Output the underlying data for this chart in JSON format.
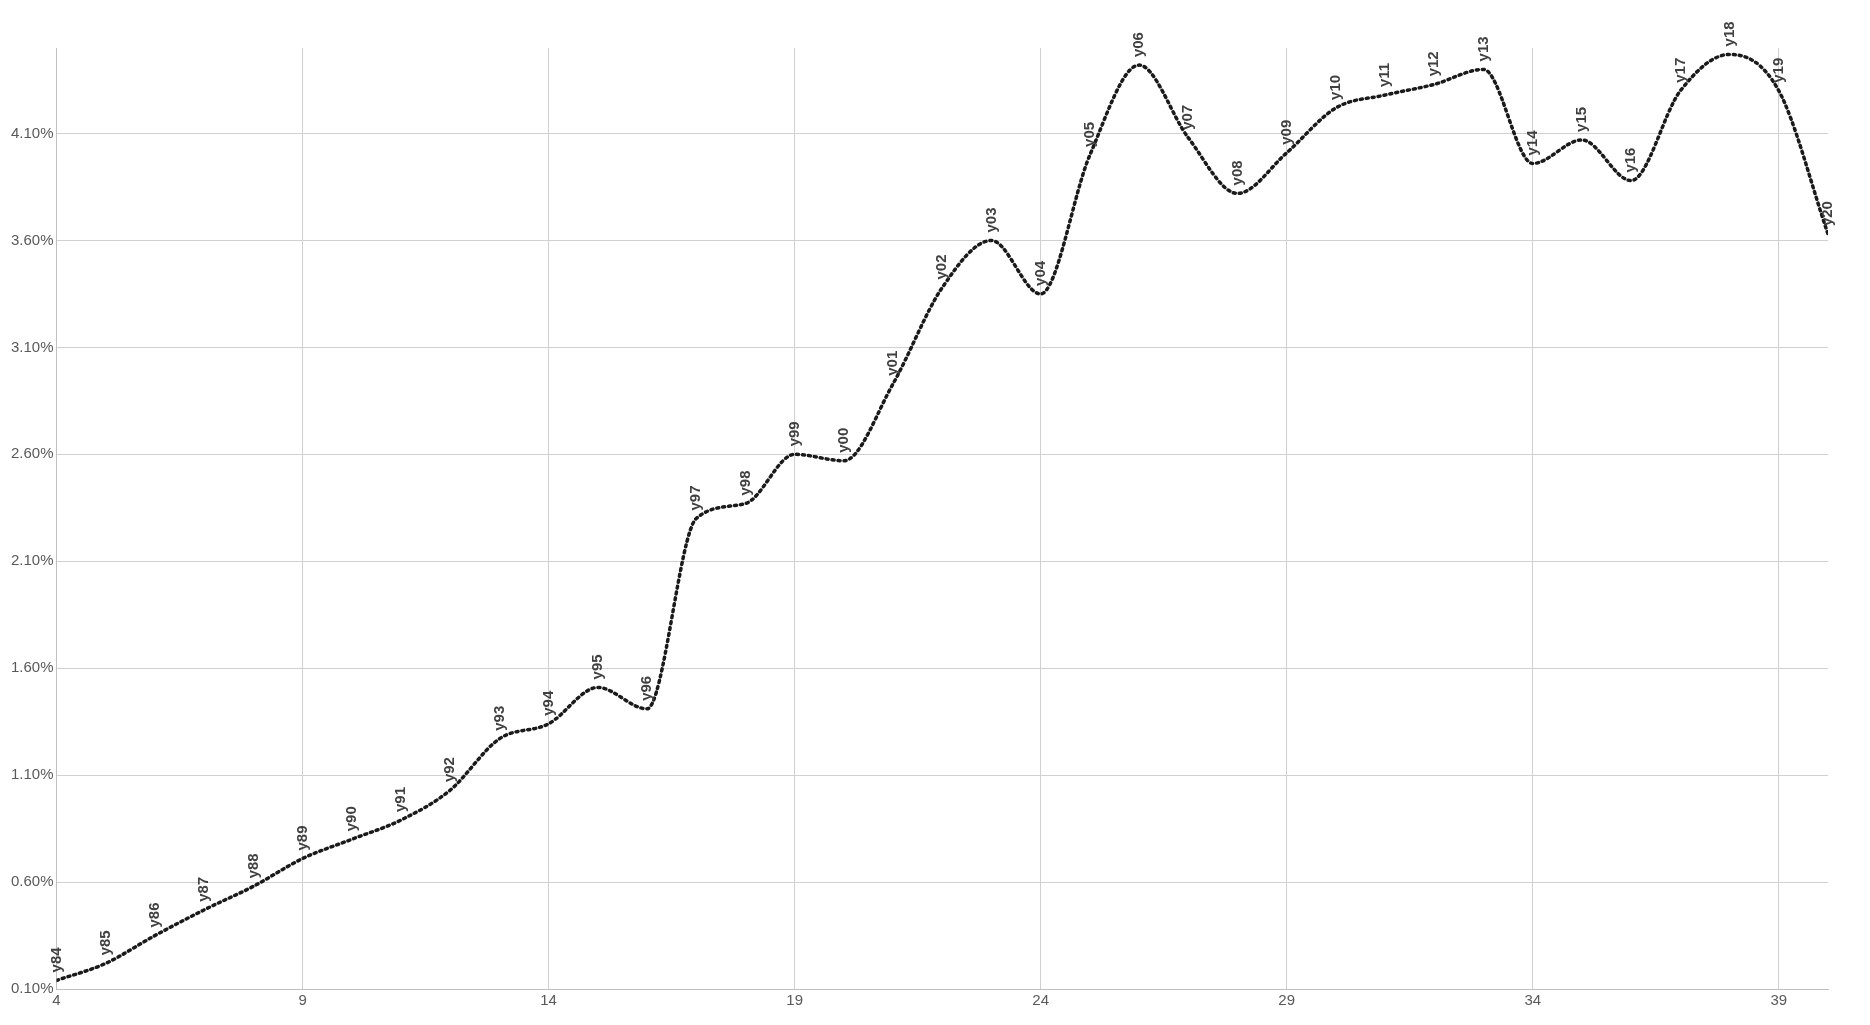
{
  "chart_data": {
    "type": "line",
    "x": [
      4,
      5,
      6,
      7,
      8,
      9,
      10,
      11,
      12,
      13,
      14,
      15,
      16,
      17,
      18,
      19,
      20,
      21,
      22,
      23,
      24,
      25,
      26,
      27,
      28,
      29,
      30,
      31,
      32,
      33,
      34,
      35,
      36,
      37,
      38,
      39,
      40
    ],
    "series": [
      {
        "color": "#1a1a1a",
        "values": [
          0.14,
          0.22,
          0.35,
          0.47,
          0.58,
          0.71,
          0.8,
          0.89,
          1.03,
          1.27,
          1.34,
          1.51,
          1.41,
          2.3,
          2.37,
          2.6,
          2.57,
          2.93,
          3.38,
          3.6,
          3.35,
          4.0,
          4.42,
          4.08,
          3.82,
          4.01,
          4.22,
          4.28,
          4.33,
          4.4,
          3.96,
          4.07,
          3.88,
          4.3,
          4.47,
          4.3,
          3.63
        ],
        "value_labels": [
          "y84",
          "y85",
          "y86",
          "y87",
          "y88",
          "y89",
          "y90",
          "y91",
          "y92",
          "y93",
          "y94",
          "y95",
          "y96",
          "y97",
          "y98",
          "y99",
          "y00",
          "y01",
          "y02",
          "y03",
          "y04",
          "y05",
          "y06",
          "y07",
          "y08",
          "y09",
          "y10",
          "y11",
          "y12",
          "y13",
          "y14",
          "y15",
          "y16",
          "y17",
          "y18",
          "y19",
          "y20"
        ]
      }
    ],
    "xlim": [
      4,
      40
    ],
    "xticks": [
      4,
      9,
      14,
      19,
      24,
      29,
      34,
      39
    ],
    "ylim": [
      0.1,
      4.5
    ],
    "yticks": [
      {
        "value": 0.1,
        "label": "0.10%"
      },
      {
        "value": 0.6,
        "label": "0.60%"
      },
      {
        "value": 1.1,
        "label": "1.10%"
      },
      {
        "value": 1.6,
        "label": "1.60%"
      },
      {
        "value": 2.1,
        "label": "2.10%"
      },
      {
        "value": 2.6,
        "label": "2.60%"
      },
      {
        "value": 3.1,
        "label": "3.10%"
      },
      {
        "value": 3.6,
        "label": "3.60%"
      },
      {
        "value": 4.1,
        "label": "4.10%"
      }
    ],
    "grid": true,
    "legend": false,
    "marker": "none",
    "line_style": "dotted"
  }
}
